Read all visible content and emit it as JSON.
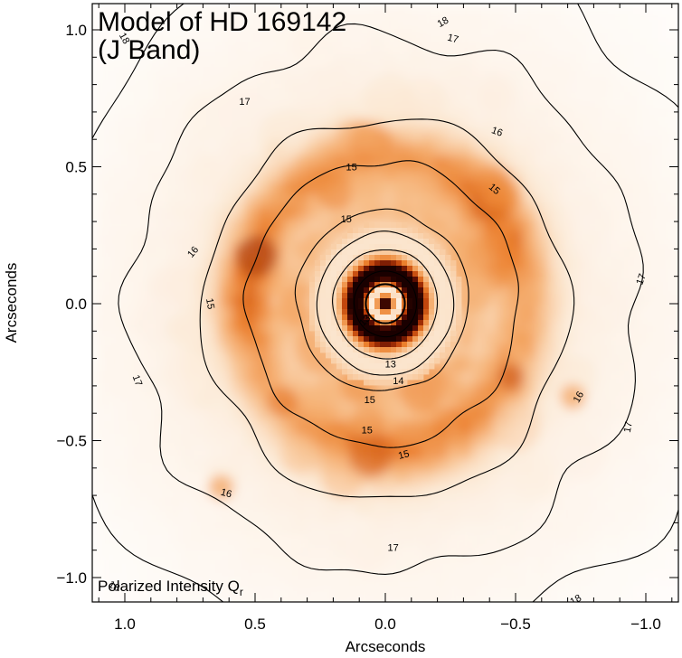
{
  "chart_data": {
    "type": "heatmap",
    "title_line1": "Model of HD 169142",
    "title_line2": "(J Band)",
    "xlabel": "Arcseconds",
    "ylabel": "Arcseconds",
    "xlim": [
      1.1,
      -1.1
    ],
    "ylim": [
      -1.1,
      1.1
    ],
    "x_ticks": [
      {
        "value": 1.0,
        "label": "1.0"
      },
      {
        "value": 0.5,
        "label": "0.5"
      },
      {
        "value": 0.0,
        "label": "0.0"
      },
      {
        "value": -0.5,
        "label": "−0.5"
      },
      {
        "value": -1.0,
        "label": "−1.0"
      }
    ],
    "y_ticks": [
      {
        "value": 1.0,
        "label": "1.0"
      },
      {
        "value": 0.5,
        "label": "0.5"
      },
      {
        "value": 0.0,
        "label": "0.0"
      },
      {
        "value": -0.5,
        "label": "−0.5"
      },
      {
        "value": -1.0,
        "label": "−1.0"
      }
    ],
    "inset_label": "Polarized Intensity Q",
    "inset_label_subscript": "r",
    "colormap": [
      "#ffffff",
      "#fbe2c8",
      "#f6b377",
      "#eb7f2c",
      "#b83a06",
      "#5a0d02",
      "#1a0000"
    ],
    "contours": [
      {
        "level": 18,
        "label": "18",
        "radius": 1.3
      },
      {
        "level": 17,
        "label": "17",
        "radius": 0.98
      },
      {
        "level": 16,
        "label": "16",
        "radius": 0.7
      },
      {
        "level": 15,
        "label": "15",
        "radius": 0.52
      },
      {
        "level": 15,
        "label": "15",
        "radius": 0.33
      },
      {
        "level": 14,
        "label": "14",
        "radius": 0.26
      },
      {
        "level": 13,
        "label": "13",
        "radius": 0.2
      },
      {
        "level": 13,
        "label": "13",
        "radius": 0.12
      }
    ]
  }
}
